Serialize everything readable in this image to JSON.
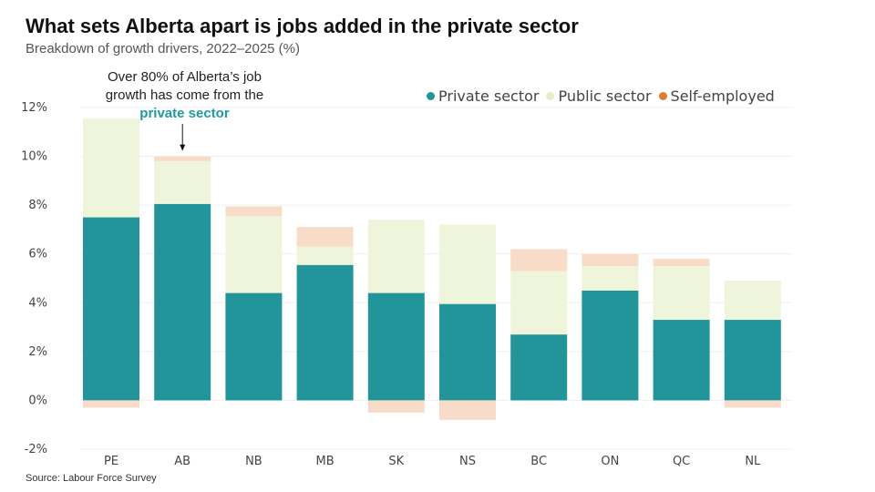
{
  "header": {
    "title": "What sets Alberta apart is jobs added in the private sector",
    "subtitle": "Breakdown of growth drivers, 2022–2025 (%)"
  },
  "footer": {
    "source": "Source: Labour Force Survey"
  },
  "annotation": {
    "line1": "Over 80% of Alberta’s job",
    "line2": "growth has come from the",
    "highlight": "private sector",
    "target_category": "AB"
  },
  "colors": {
    "private": "#21959a",
    "public": "#eef5da",
    "self": "#f9dcc8",
    "self_legend": "#e07b2c",
    "highlight": "#1f9aa3"
  },
  "chart_data": {
    "type": "bar",
    "stacked": true,
    "title": "What sets Alberta apart is jobs added in the private sector",
    "subtitle": "Breakdown of growth drivers, 2022–2025 (%)",
    "categories": [
      "PE",
      "AB",
      "NB",
      "MB",
      "SK",
      "NS",
      "BC",
      "ON",
      "QC",
      "NL"
    ],
    "series": [
      {
        "name": "Private sector",
        "values": [
          7.5,
          8.05,
          4.4,
          5.55,
          4.4,
          3.95,
          2.7,
          4.5,
          3.3,
          3.3
        ]
      },
      {
        "name": "Public sector",
        "values": [
          4.05,
          1.75,
          3.15,
          0.75,
          3.0,
          3.25,
          2.6,
          1.0,
          2.2,
          1.6
        ]
      },
      {
        "name": "Self-employed",
        "values": [
          -0.3,
          0.2,
          0.4,
          0.8,
          -0.5,
          -0.8,
          0.9,
          0.5,
          0.3,
          -0.3
        ]
      }
    ],
    "yticks": [
      "12%",
      "10%",
      "8%",
      "6%",
      "4%",
      "2%",
      "0%",
      "-2%"
    ],
    "ylim": [
      -2,
      12
    ],
    "grid": true,
    "legend_position": "top-right"
  }
}
